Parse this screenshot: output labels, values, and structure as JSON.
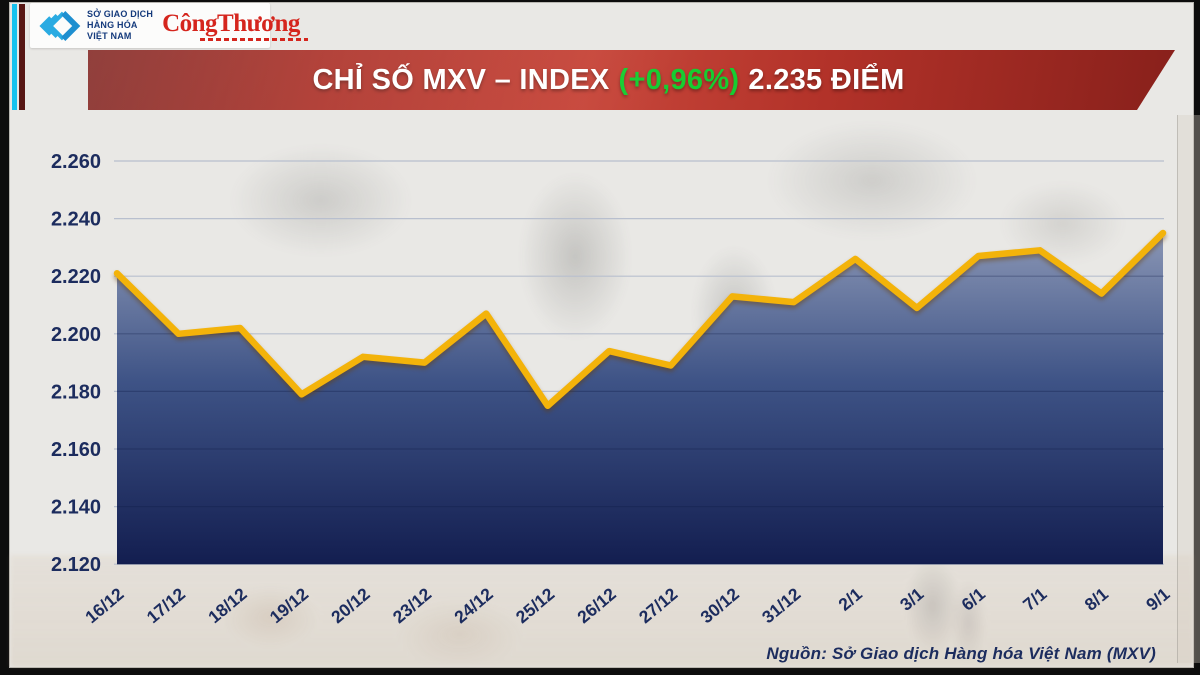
{
  "brand": {
    "exchange_lines": [
      "SỞ GIAO DỊCH",
      "HÀNG HÓA",
      "VIỆT NAM"
    ],
    "newspaper": "CôngThương",
    "logo_color": "#2aabe2",
    "newspaper_color": "#d5251d"
  },
  "banner": {
    "title_prefix": "CHỈ SỐ MXV – INDEX",
    "change": "(+0,96%)",
    "title_suffix": "2.235 ĐIỂM",
    "change_color": "#16cd31",
    "background_color": "#b23229"
  },
  "source_note": "Nguồn: Sở Giao dịch Hàng hóa Việt Nam (MXV)",
  "chart_data": {
    "type": "area",
    "title": "CHỈ SỐ MXV – INDEX (+0,96%) 2.235 ĐIỂM",
    "categories": [
      "16/12",
      "17/12",
      "18/12",
      "19/12",
      "20/12",
      "23/12",
      "24/12",
      "25/12",
      "26/12",
      "27/12",
      "30/12",
      "31/12",
      "2/1",
      "3/1",
      "6/1",
      "7/1",
      "8/1",
      "9/1"
    ],
    "values": [
      2221,
      2200,
      2202,
      2179,
      2192,
      2190,
      2207,
      2175,
      2194,
      2189,
      2213,
      2211,
      2226,
      2209,
      2227,
      2229,
      2214,
      2235
    ],
    "unit": "điểm",
    "xlabel": "",
    "ylabel": "",
    "ylim": [
      2120,
      2260
    ],
    "y_ticks": [
      2120,
      2140,
      2160,
      2180,
      2200,
      2220,
      2240,
      2260
    ],
    "y_tick_labels": [
      "2.120",
      "2.140",
      "2.160",
      "2.180",
      "2.200",
      "2.220",
      "2.240",
      "2.260"
    ],
    "grid": true,
    "legend_position": "none",
    "line_color": "#f3b30a",
    "area_gradient": [
      "#8a96b5",
      "#3e5386",
      "#131e50"
    ],
    "label_color": "#1c2c5e",
    "gridline_color": "#b8bfce"
  }
}
